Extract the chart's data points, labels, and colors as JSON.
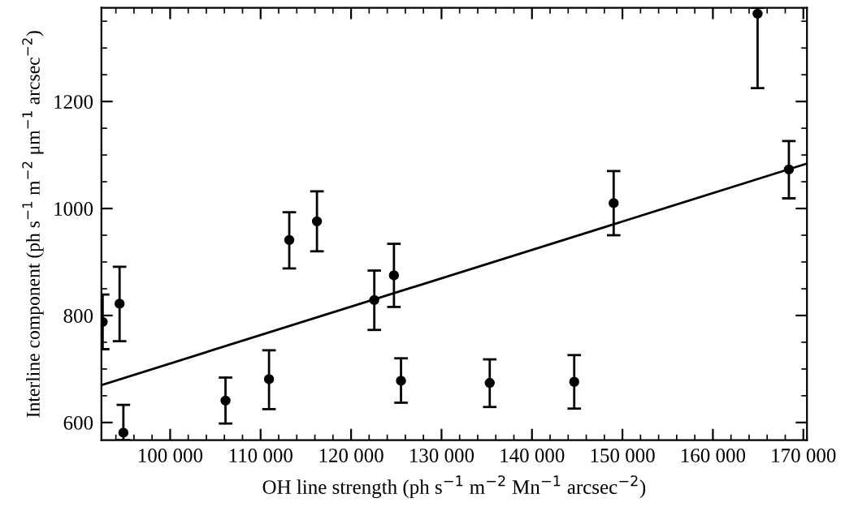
{
  "chart_data": {
    "type": "scatter",
    "xlabel": "OH line strength (ph s$^{−1}$ m$^{−2}$ Mn$^{−1}$ arcsec$^{−2}$)",
    "ylabel": "Interline component (ph s$^{−1}$ m$^{−2}$ μm$^{−1}$ arcsec$^{−2}$)",
    "xlim": [
      92400,
      170400
    ],
    "ylim": [
      567,
      1375
    ],
    "xticks": [
      {
        "value": 100000,
        "label": "100 000"
      },
      {
        "value": 110000,
        "label": "110 000"
      },
      {
        "value": 120000,
        "label": "120 000"
      },
      {
        "value": 130000,
        "label": "130 000"
      },
      {
        "value": 140000,
        "label": "140 000"
      },
      {
        "value": 150000,
        "label": "150 000"
      },
      {
        "value": 160000,
        "label": "160 000"
      },
      {
        "value": 170000,
        "label": "170 000"
      }
    ],
    "yticks": [
      600,
      800,
      1000,
      1200
    ],
    "grid": false,
    "series": [
      {
        "color": "#000000",
        "marker": "circle",
        "x": [
          92540,
          94410,
          94830,
          106120,
          110930,
          113170,
          116230,
          122570,
          124740,
          125520,
          135330,
          144670,
          149030,
          164940,
          168400
        ],
        "values": [
          788,
          822,
          581,
          641,
          681,
          941,
          976,
          829,
          875,
          678,
          674,
          676,
          1010,
          1364,
          1073
        ],
        "errors": [
          [
            737,
            839
          ],
          [
            752,
            891
          ],
          [
            567,
            633
          ],
          [
            598,
            684
          ],
          [
            625,
            735
          ],
          [
            888,
            993
          ],
          [
            920,
            1032
          ],
          [
            773,
            884
          ],
          [
            816,
            934
          ],
          [
            637,
            720
          ],
          [
            629,
            718
          ],
          [
            626,
            726
          ],
          [
            950,
            1070
          ],
          [
            1225,
            1375
          ],
          [
            1019,
            1126
          ]
        ]
      },
      {
        "type": "line",
        "color": "#000000",
        "line_style": "solid",
        "marker": "none",
        "x": [
          92400,
          170400
        ],
        "values": [
          670,
          1084
        ]
      }
    ]
  }
}
